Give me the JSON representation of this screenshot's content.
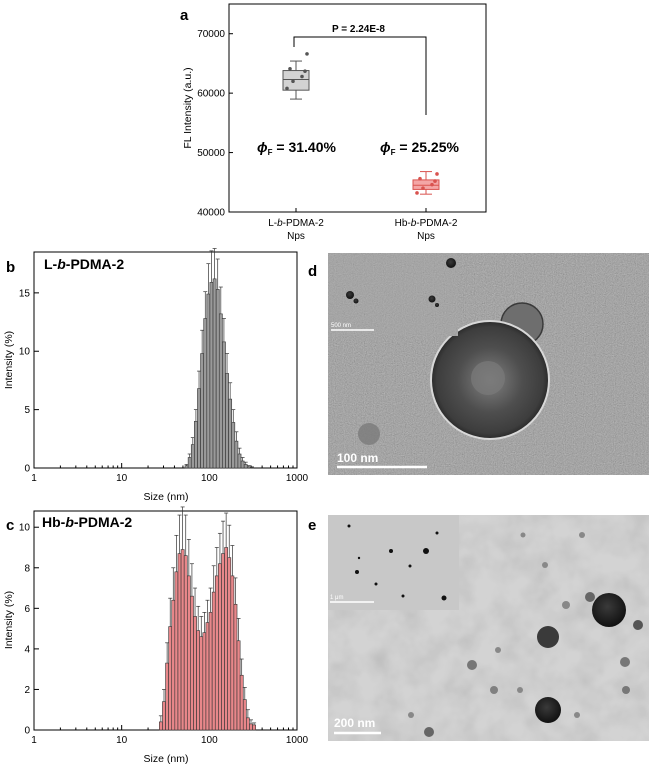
{
  "panels": {
    "a": "a",
    "b": "b",
    "c": "c",
    "d": "d",
    "e": "e"
  },
  "chart_data": [
    {
      "id": "a",
      "type": "box",
      "ylabel": "FL Intensity (a.u.)",
      "ylim": [
        40000,
        75000
      ],
      "yticks": [
        "40000",
        "50000",
        "60000",
        "70000"
      ],
      "categories": [
        {
          "line1": "L-",
          "ital": "b",
          "line1b": "-PDMA-2",
          "line2": "Nps"
        },
        {
          "line1": "Hb-",
          "ital": "b",
          "line1b": "-PDMA-2",
          "line2": "Nps"
        }
      ],
      "boxes": [
        {
          "min": 59000,
          "q1": 60500,
          "median": 62300,
          "q3": 63800,
          "max": 65400,
          "points": [
            60800,
            62000,
            62800,
            63700,
            64100,
            66600
          ],
          "fill": "#d3d3d3",
          "stroke": "#555555"
        },
        {
          "min": 43000,
          "q1": 43800,
          "median": 44500,
          "q3": 45400,
          "max": 46800,
          "points": [
            43200,
            44000,
            44600,
            45200,
            45600,
            46400
          ],
          "fill": "#f4a6a6",
          "stroke": "#d9534f"
        }
      ],
      "pvalue": "P = 2.24E-8",
      "phi_labels": [
        {
          "symbol": "ϕ",
          "sub": "F",
          "text": " = 31.40%"
        },
        {
          "symbol": "ϕ",
          "sub": "F",
          "text": " = 25.25%"
        }
      ]
    },
    {
      "id": "b",
      "type": "bar",
      "title_pre": "L-",
      "title_ital": "b",
      "title_post": "-PDMA-2",
      "xlabel": "Size (nm)",
      "ylabel": "Intensity (%)",
      "xscale": "log",
      "xlim": [
        1,
        1000
      ],
      "xticks": [
        "1",
        "10",
        "100",
        "1000"
      ],
      "ylim": [
        0,
        18.5
      ],
      "yticks": [
        "0",
        "5",
        "10",
        "15"
      ],
      "color": "#9a9a9a",
      "x": [
        55.0,
        59.7,
        64.8,
        70.3,
        76.3,
        82.8,
        89.9,
        97.5,
        105.8,
        114.8,
        124.6,
        135.2,
        146.7,
        159.2,
        172.8,
        187.5,
        203.5,
        220.8,
        239.6,
        260.0,
        282.2,
        306.2
      ],
      "values": [
        0.2,
        0.9,
        2.0,
        4.0,
        6.8,
        9.8,
        12.8,
        14.9,
        15.9,
        16.2,
        15.3,
        13.2,
        10.8,
        8.1,
        5.9,
        3.9,
        2.3,
        1.2,
        0.6,
        0.3,
        0.1,
        0.05
      ],
      "errors": [
        0.1,
        0.3,
        0.6,
        1.0,
        1.5,
        2.0,
        2.3,
        2.6,
        2.7,
        2.6,
        2.6,
        2.3,
        2.0,
        1.7,
        1.4,
        1.1,
        0.8,
        0.5,
        0.3,
        0.2,
        0.1,
        0.05
      ]
    },
    {
      "id": "c",
      "type": "bar",
      "title_pre": "Hb-",
      "title_ital": "b",
      "title_post": "-PDMA-2",
      "xlabel": "Size (nm)",
      "ylabel": "Intensity (%)",
      "xscale": "log",
      "xlim": [
        1,
        1000
      ],
      "xticks": [
        "1",
        "10",
        "100",
        "1000"
      ],
      "ylim": [
        0,
        10.8
      ],
      "yticks": [
        "0",
        "2",
        "4",
        "6",
        "8",
        "10"
      ],
      "color": "#e8878a",
      "x": [
        28.0,
        30.4,
        33.0,
        35.8,
        38.8,
        42.1,
        45.7,
        49.6,
        53.8,
        58.4,
        63.3,
        68.7,
        74.6,
        80.9,
        87.8,
        95.3,
        103.4,
        112.2,
        121.7,
        132.1,
        143.3,
        155.5,
        168.7,
        183.1,
        198.6,
        215.5,
        233.9,
        253.8,
        275.3,
        298.8,
        324.1
      ],
      "values": [
        0.4,
        1.4,
        3.3,
        5.1,
        6.4,
        7.8,
        8.7,
        8.9,
        8.6,
        7.6,
        6.6,
        5.6,
        4.9,
        4.6,
        4.8,
        5.3,
        5.8,
        6.8,
        7.6,
        8.2,
        8.7,
        9.0,
        8.5,
        7.6,
        6.2,
        4.4,
        2.7,
        1.5,
        0.6,
        0.3,
        0.25
      ],
      "errors": [
        0.3,
        0.6,
        1.0,
        1.4,
        1.6,
        1.8,
        1.9,
        2.1,
        2.0,
        1.8,
        1.6,
        1.4,
        1.2,
        1.0,
        1.0,
        1.1,
        1.2,
        1.3,
        1.4,
        1.5,
        1.6,
        1.7,
        1.6,
        1.5,
        1.3,
        1.1,
        0.8,
        0.6,
        0.4,
        0.2,
        0.1
      ]
    }
  ],
  "tem": [
    {
      "id": "d",
      "scale_main": "100 nm",
      "scale_inset": "500 nm"
    },
    {
      "id": "e",
      "scale_main": "200 nm",
      "scale_inset": "1 μm"
    }
  ]
}
